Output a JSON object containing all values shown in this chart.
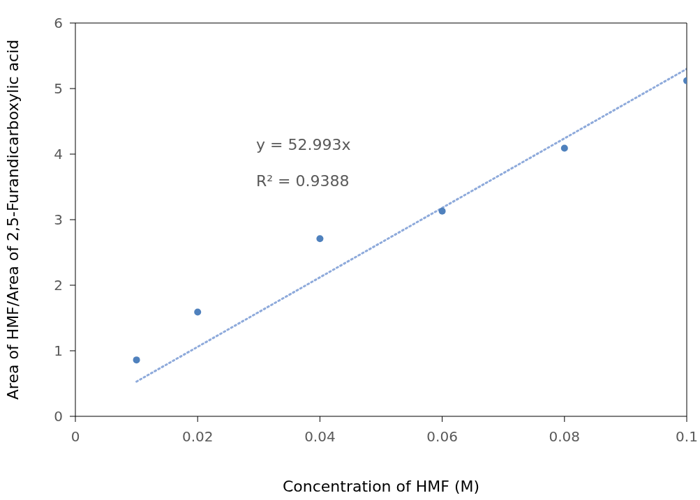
{
  "chart_data": {
    "type": "scatter",
    "xlabel": "Concentration of HMF (M)",
    "ylabel": "Area of HMF/Area of 2,5-Furandicarboxylic acid",
    "x": [
      0.01,
      0.02,
      0.04,
      0.06,
      0.08,
      0.1
    ],
    "series": [
      {
        "color": "#4f81bd",
        "marker": "circle",
        "values": [
          0.86,
          1.59,
          2.71,
          3.13,
          4.09,
          5.12
        ]
      },
      {
        "type": "line",
        "color": "#8eaadb",
        "marker": "none",
        "line_style": "dotted",
        "x": [
          0.01,
          0.1
        ],
        "values": [
          0.53,
          5.3
        ]
      }
    ],
    "xlim": [
      0,
      0.1
    ],
    "xticks": [
      0,
      0.02,
      0.04,
      0.06,
      0.08,
      0.1
    ],
    "ylim": [
      0,
      6
    ],
    "yticks": [
      0,
      1,
      2,
      3,
      4,
      5,
      6
    ],
    "grid": false,
    "annotations": [
      "y = 52.993x",
      "R² = 0.9388"
    ]
  }
}
